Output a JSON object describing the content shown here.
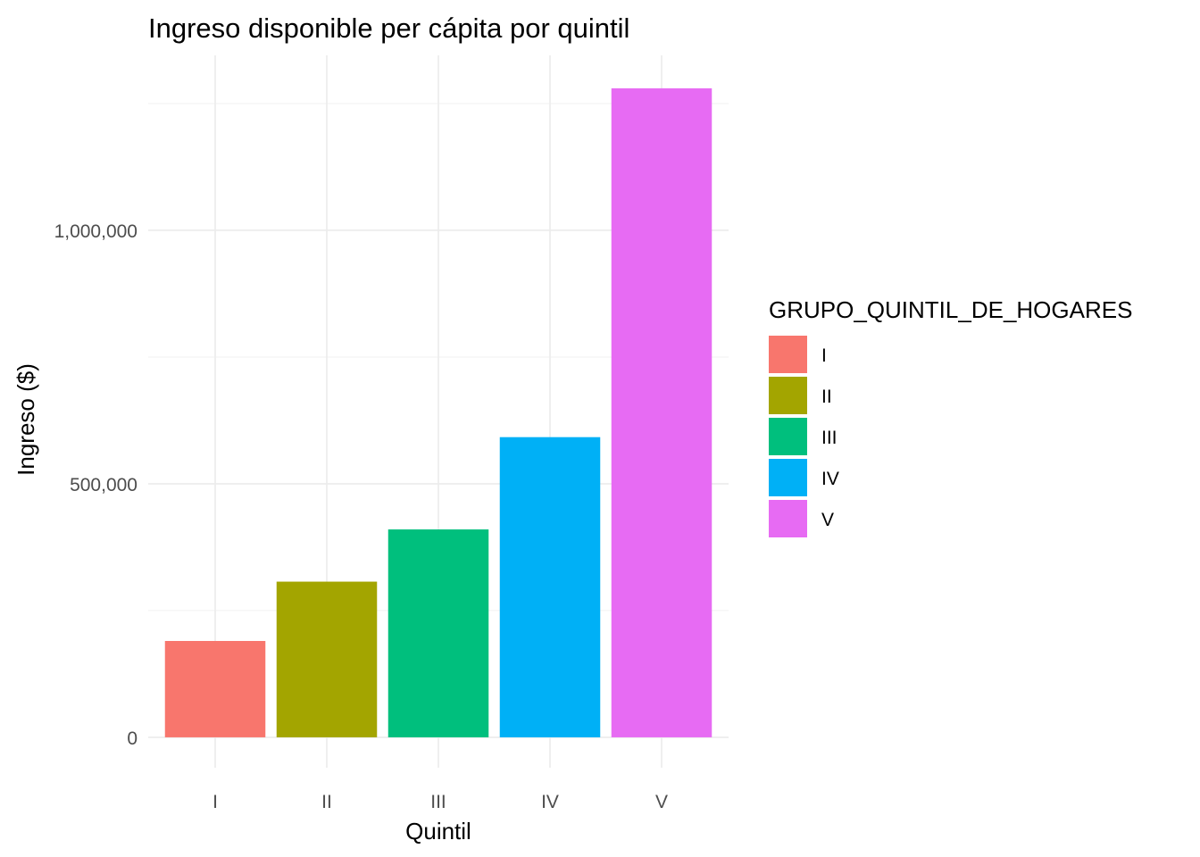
{
  "chart_data": {
    "type": "bar",
    "title": "Ingreso disponible per cápita por quintil",
    "xlabel": "Quintil",
    "ylabel": "Ingreso ($)",
    "categories": [
      "I",
      "II",
      "III",
      "IV",
      "V"
    ],
    "values": [
      190000,
      307000,
      410000,
      592000,
      1280000
    ],
    "colors": [
      "#F8766D",
      "#A3A500",
      "#00BF7D",
      "#00B0F6",
      "#E76BF3"
    ],
    "ylim": [
      -60000,
      1345000
    ],
    "yticks": [
      0,
      500000,
      1000000
    ],
    "ytick_labels": [
      "0",
      "500,000",
      "1,000,000"
    ],
    "grid": true,
    "legend": {
      "title": "GRUPO_QUINTIL_DE_HOGARES",
      "position": "right",
      "entries": [
        "I",
        "II",
        "III",
        "IV",
        "V"
      ]
    }
  }
}
